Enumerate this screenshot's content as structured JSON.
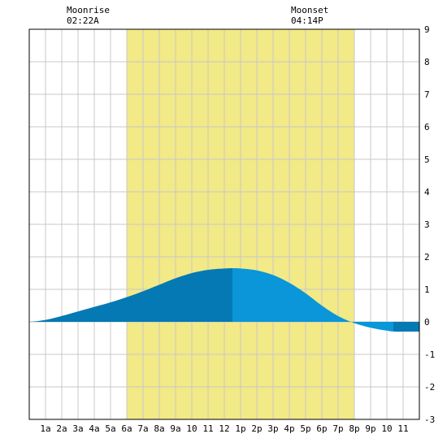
{
  "moon": {
    "rise": {
      "label": "Moonrise",
      "time": "02:22A",
      "hour": 2.37
    },
    "set": {
      "label": "Moonset",
      "time": "04:14P",
      "hour": 16.23
    }
  },
  "colors": {
    "background": "#ffffff",
    "daylight": "#f2e987",
    "grid": "#c8c8c8",
    "frame": "#000000",
    "tide_rising_dark": "#0579b3",
    "tide_falling": "#0a96d9",
    "tide_below_zero_dark": "#0579b3"
  },
  "chart_data": {
    "type": "area",
    "title": "",
    "xlabel": "",
    "ylabel": "",
    "xlim": [
      0,
      24
    ],
    "ylim": [
      -3,
      9
    ],
    "grid": true,
    "y_axis_side": "right",
    "x_tick_labels": [
      "1a",
      "2a",
      "3a",
      "4a",
      "5a",
      "6a",
      "7a",
      "8a",
      "9a",
      "10",
      "11",
      "12",
      "1p",
      "2p",
      "3p",
      "4p",
      "5p",
      "6p",
      "7p",
      "8p",
      "9p",
      "10",
      "11"
    ],
    "y_ticks": [
      -3,
      -2,
      -1,
      0,
      1,
      2,
      3,
      4,
      5,
      6,
      7,
      8,
      9
    ],
    "daylight": {
      "start_hour": 6.0,
      "end_hour": 20.0
    },
    "series": [
      {
        "x": [
          0,
          1,
          2,
          3,
          4,
          5,
          6,
          7,
          8,
          9,
          10,
          11,
          12,
          12.5,
          13,
          14,
          15,
          16,
          17,
          18,
          19,
          20,
          21,
          22,
          22.5,
          23,
          24
        ],
        "values": [
          0.0,
          0.06,
          0.18,
          0.32,
          0.46,
          0.6,
          0.76,
          0.94,
          1.14,
          1.34,
          1.5,
          1.6,
          1.64,
          1.65,
          1.64,
          1.58,
          1.44,
          1.2,
          0.88,
          0.5,
          0.18,
          -0.04,
          -0.18,
          -0.27,
          -0.3,
          -0.3,
          -0.3
        ]
      }
    ]
  }
}
